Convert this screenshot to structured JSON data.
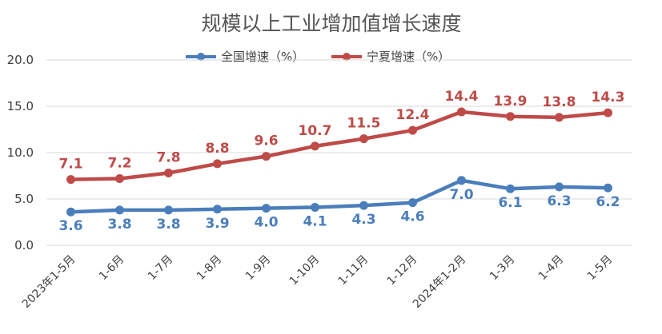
{
  "chart_data": {
    "type": "line",
    "title": "规模以上工业增加值增长速度",
    "categories": [
      "2023年1-5月",
      "1-6月",
      "1-7月",
      "1-8月",
      "1-9月",
      "1-10月",
      "1-11月",
      "1-12月",
      "2024年1-2月",
      "1-3月",
      "1-4月",
      "1-5月"
    ],
    "series": [
      {
        "name": "全国增速（%）",
        "color": "#4a7ebb",
        "values": [
          3.6,
          3.8,
          3.8,
          3.9,
          4.0,
          4.1,
          4.3,
          4.6,
          7.0,
          6.1,
          6.3,
          6.2
        ]
      },
      {
        "name": "宁夏增速（%）",
        "color": "#be4b48",
        "values": [
          7.1,
          7.2,
          7.8,
          8.8,
          9.6,
          10.7,
          11.5,
          12.4,
          14.4,
          13.9,
          13.8,
          14.3
        ]
      }
    ],
    "ylim": [
      0,
      20
    ],
    "yticks": [
      "0.0",
      "5.0",
      "10.0",
      "15.0",
      "20.0"
    ],
    "legend": "top-center",
    "grid": true,
    "data_labels": true
  }
}
